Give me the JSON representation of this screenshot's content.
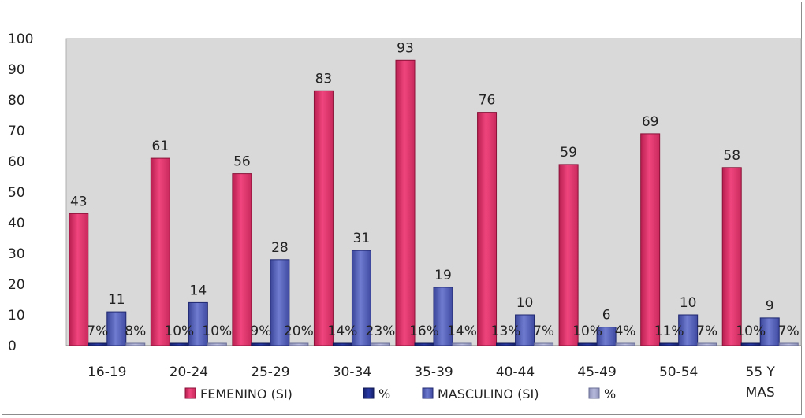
{
  "chart_data": {
    "type": "bar",
    "categories": [
      "16-19",
      "20-24",
      "25-29",
      "30-34",
      "35-39",
      "40-44",
      "45-49",
      "50-54",
      "55 Y MAS"
    ],
    "series": [
      {
        "name": "FEMENINO (SI)",
        "values": [
          43,
          61,
          56,
          83,
          93,
          76,
          59,
          69,
          58
        ],
        "labels": [
          "43",
          "61",
          "56",
          "83",
          "93",
          "76",
          "59",
          "69",
          "58"
        ],
        "color": "#e8336e"
      },
      {
        "name": "%",
        "values": [
          7,
          10,
          9,
          14,
          16,
          13,
          10,
          11,
          10
        ],
        "labels": [
          "7%",
          "10%",
          "9%",
          "14%",
          "16%",
          "13%",
          "10%",
          "11%",
          "10%"
        ],
        "color": "#1f2f8f"
      },
      {
        "name": "MASCULINO (SI)",
        "values": [
          11,
          14,
          28,
          31,
          19,
          10,
          6,
          10,
          9
        ],
        "labels": [
          "11",
          "14",
          "28",
          "31",
          "19",
          "10",
          "6",
          "10",
          "9"
        ],
        "color": "#4d5bb8"
      },
      {
        "name": "%",
        "values": [
          8,
          10,
          20,
          23,
          14,
          7,
          4,
          7,
          7
        ],
        "labels": [
          "8%",
          "10%",
          "20%",
          "23%",
          "14%",
          "7%",
          "4%",
          "7%",
          "7%"
        ],
        "color": "#9fa3c8"
      }
    ],
    "yticks": [
      "0",
      "10",
      "20",
      "30",
      "40",
      "50",
      "60",
      "70",
      "80",
      "90",
      "100"
    ],
    "ylim": [
      0,
      100
    ],
    "grid": false,
    "legend": "bottom",
    "plot_background": "#d9d9d9"
  }
}
